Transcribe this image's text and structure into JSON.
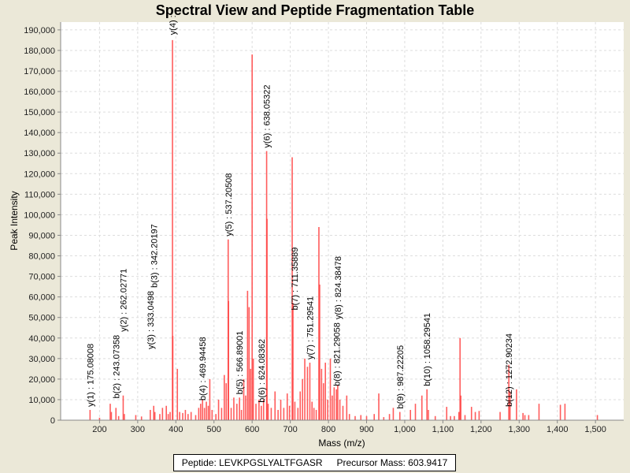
{
  "chart_data": {
    "type": "bar",
    "title": "Spectral View and Peptide Fragmentation Table",
    "xlabel": "Mass (m/z)",
    "ylabel": "Peak Intensity",
    "xlim": [
      98,
      1574
    ],
    "ylim": [
      0,
      193800
    ],
    "xticks": [
      200,
      300,
      400,
      500,
      600,
      700,
      800,
      900,
      1000,
      1100,
      1200,
      1300,
      1400,
      1500
    ],
    "xtick_labels": [
      "200",
      "300",
      "400",
      "500",
      "600",
      "700",
      "800",
      "900",
      "1,000",
      "1,100",
      "1,200",
      "1,300",
      "1,400",
      "1,500"
    ],
    "yticks": [
      0,
      10000,
      20000,
      30000,
      40000,
      50000,
      60000,
      70000,
      80000,
      90000,
      100000,
      110000,
      120000,
      130000,
      140000,
      150000,
      160000,
      170000,
      180000,
      190000
    ],
    "ytick_labels": [
      "0",
      "10,000",
      "20,000",
      "30,000",
      "40,000",
      "50,000",
      "60,000",
      "70,000",
      "80,000",
      "90,000",
      "100,000",
      "110,000",
      "120,000",
      "130,000",
      "140,000",
      "150,000",
      "160,000",
      "170,000",
      "180,000",
      "190,000"
    ],
    "grid": true,
    "color": "#ff4040",
    "peaks": [
      [
        175.1,
        5000
      ],
      [
        200,
        1200
      ],
      [
        228,
        8000
      ],
      [
        231,
        4000
      ],
      [
        243,
        6000
      ],
      [
        250,
        2000
      ],
      [
        262,
        12000
      ],
      [
        265,
        3000
      ],
      [
        295,
        2500
      ],
      [
        310,
        1800
      ],
      [
        333,
        5000
      ],
      [
        342,
        7000
      ],
      [
        345,
        4000
      ],
      [
        358,
        3000
      ],
      [
        365,
        6000
      ],
      [
        375,
        7000
      ],
      [
        380,
        3000
      ],
      [
        385,
        4000
      ],
      [
        391.2,
        185000
      ],
      [
        392,
        41000
      ],
      [
        404,
        25000
      ],
      [
        410,
        4000
      ],
      [
        418,
        3500
      ],
      [
        425,
        5000
      ],
      [
        432,
        3000
      ],
      [
        440,
        4000
      ],
      [
        452,
        2500
      ],
      [
        460,
        6000
      ],
      [
        465,
        8000
      ],
      [
        470,
        10000
      ],
      [
        475,
        6000
      ],
      [
        480,
        9000
      ],
      [
        485,
        7000
      ],
      [
        489,
        20000
      ],
      [
        495,
        5000
      ],
      [
        505,
        3000
      ],
      [
        512,
        10000
      ],
      [
        520,
        6000
      ],
      [
        527,
        22000
      ],
      [
        532,
        18000
      ],
      [
        537.2,
        88000
      ],
      [
        538,
        58000
      ],
      [
        545,
        6000
      ],
      [
        552,
        11000
      ],
      [
        560,
        8000
      ],
      [
        566.9,
        11000
      ],
      [
        572,
        5000
      ],
      [
        578,
        20000
      ],
      [
        583,
        12000
      ],
      [
        588,
        63000
      ],
      [
        592,
        55000
      ],
      [
        596,
        25000
      ],
      [
        600,
        178000
      ],
      [
        603,
        30000
      ],
      [
        610,
        8000
      ],
      [
        618,
        10000
      ],
      [
        624,
        7000
      ],
      [
        630,
        10000
      ],
      [
        638,
        131000
      ],
      [
        639,
        98000
      ],
      [
        642,
        8000
      ],
      [
        650,
        6000
      ],
      [
        660,
        14000
      ],
      [
        668,
        5000
      ],
      [
        675,
        10000
      ],
      [
        683,
        6000
      ],
      [
        692,
        13000
      ],
      [
        698,
        7000
      ],
      [
        705,
        128000
      ],
      [
        707,
        57000
      ],
      [
        712,
        9000
      ],
      [
        720,
        6000
      ],
      [
        726,
        14000
      ],
      [
        732,
        20000
      ],
      [
        738,
        30000
      ],
      [
        745,
        26000
      ],
      [
        751.3,
        28000
      ],
      [
        757,
        9000
      ],
      [
        762,
        6000
      ],
      [
        768,
        5000
      ],
      [
        775,
        94000
      ],
      [
        777,
        66000
      ],
      [
        782,
        25000
      ],
      [
        787,
        18000
      ],
      [
        792,
        28000
      ],
      [
        798,
        10000
      ],
      [
        805,
        30000
      ],
      [
        810,
        12000
      ],
      [
        815,
        16000
      ],
      [
        821,
        15000
      ],
      [
        824.4,
        17000
      ],
      [
        830,
        10000
      ],
      [
        838,
        7000
      ],
      [
        848,
        12000
      ],
      [
        855,
        3000
      ],
      [
        870,
        2000
      ],
      [
        885,
        2500
      ],
      [
        900,
        2000
      ],
      [
        920,
        3000
      ],
      [
        932,
        13000
      ],
      [
        945,
        1500
      ],
      [
        960,
        3000
      ],
      [
        970,
        6000
      ],
      [
        987.2,
        4000
      ],
      [
        1015,
        5000
      ],
      [
        1028,
        8000
      ],
      [
        1045,
        12000
      ],
      [
        1058.3,
        15000
      ],
      [
        1062,
        5000
      ],
      [
        1080,
        2000
      ],
      [
        1110,
        6500
      ],
      [
        1120,
        2000
      ],
      [
        1130,
        2000
      ],
      [
        1142,
        4000
      ],
      [
        1145,
        40000
      ],
      [
        1147,
        12000
      ],
      [
        1158,
        2500
      ],
      [
        1175,
        6500
      ],
      [
        1185,
        4000
      ],
      [
        1195,
        4500
      ],
      [
        1250,
        4000
      ],
      [
        1272.9,
        27000
      ],
      [
        1276,
        14000
      ],
      [
        1293,
        15000
      ],
      [
        1310,
        3500
      ],
      [
        1315,
        2500
      ],
      [
        1325,
        2500
      ],
      [
        1352,
        8000
      ],
      [
        1408,
        7500
      ],
      [
        1420,
        8000
      ],
      [
        1505,
        2500
      ]
    ],
    "annotations": [
      {
        "mz": 175.08008,
        "intensity": 5000,
        "text": "y(1) : 175.08008"
      },
      {
        "mz": 243.07358,
        "intensity": 9000,
        "text": "b(2) : 243.07358"
      },
      {
        "mz": 262.02771,
        "intensity": 12000,
        "text": "y(2) : 262.02771"
      },
      {
        "mz": 333.0498,
        "intensity": 33000,
        "text": "y(3) : 333.0498"
      },
      {
        "mz": 342.2019,
        "intensity": 7000,
        "text": "b(3) : 342.20197"
      },
      {
        "mz": 391.2,
        "intensity": 186000,
        "text": "y(4) :"
      },
      {
        "mz": 469.94458,
        "intensity": 8000,
        "text": "b(4) : 469.94458"
      },
      {
        "mz": 537.20508,
        "intensity": 88000,
        "text": "y(5) : 537.20508"
      },
      {
        "mz": 566.89001,
        "intensity": 11000,
        "text": "b(5) : 566.89001"
      },
      {
        "mz": 624.08362,
        "intensity": 7000,
        "text": "b(6) : 624.08362"
      },
      {
        "mz": 638.05322,
        "intensity": 131000,
        "text": "y(6) : 638.05322"
      },
      {
        "mz": 711.35889,
        "intensity": 52000,
        "text": "b(7) : 711.35889"
      },
      {
        "mz": 751.29541,
        "intensity": 28000,
        "text": "y(7) : 751.29541"
      },
      {
        "mz": 821.29058,
        "intensity": 15000,
        "text": "b(8) : 821.29058"
      },
      {
        "mz": 824.38478,
        "intensity": 17000,
        "text": "y(8) : 824.38478"
      },
      {
        "mz": 987.22205,
        "intensity": 4000,
        "text": "b(9) : 987.22205"
      },
      {
        "mz": 1058.29541,
        "intensity": 15000,
        "text": "b(10) : 1058.29541"
      },
      {
        "mz": 1272.90234,
        "intensity": 5000,
        "text": "b(12) : 1272.90234"
      }
    ]
  },
  "legend": {
    "peptide": "Peptide: LEVKPGSLYALTFGASR",
    "precursor": "Precursor Mass: 603.9417"
  }
}
